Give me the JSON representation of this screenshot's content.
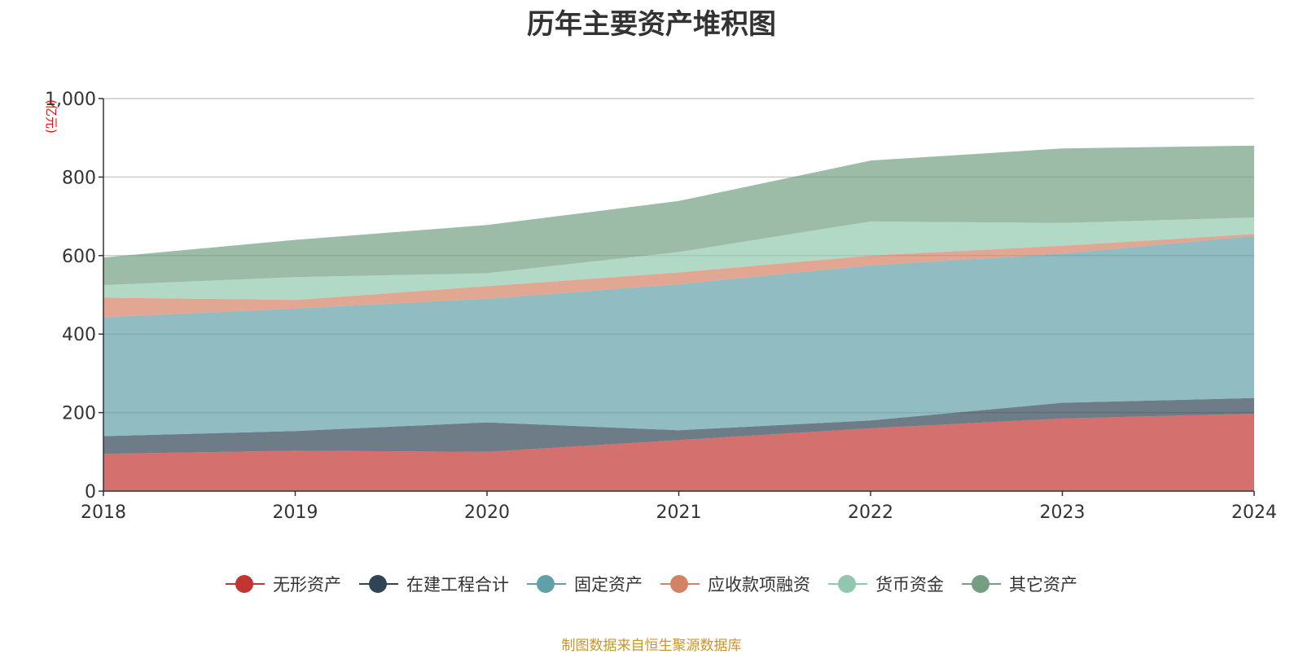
{
  "chart_data": {
    "type": "area",
    "stacked": true,
    "title": "历年主要资产堆积图",
    "ylabel": "(亿元)",
    "xlabel": "",
    "x": [
      "2018",
      "2019",
      "2020",
      "2021",
      "2022",
      "2023",
      "2024"
    ],
    "ylim": [
      0,
      1000
    ],
    "yticks": [
      0,
      200,
      400,
      600,
      800,
      1000
    ],
    "ytick_labels": [
      "0",
      "200",
      "400",
      "600",
      "800",
      "1,000"
    ],
    "grid": true,
    "legend_position": "bottom",
    "series": [
      {
        "name": "无形资产",
        "color": "#c23531",
        "values": [
          95,
          103,
          100,
          130,
          160,
          185,
          197
        ]
      },
      {
        "name": "在建工程合计",
        "color": "#2f4554",
        "values": [
          45,
          50,
          75,
          25,
          20,
          40,
          40
        ]
      },
      {
        "name": "固定资产",
        "color": "#61a0a8",
        "values": [
          303,
          312,
          315,
          372,
          395,
          380,
          413
        ]
      },
      {
        "name": "应收款项融资",
        "color": "#d48265",
        "values": [
          50,
          22,
          32,
          30,
          25,
          20,
          5
        ]
      },
      {
        "name": "货币资金",
        "color": "#91c7ae",
        "values": [
          32,
          58,
          33,
          52,
          87,
          58,
          42
        ]
      },
      {
        "name": "其它资产",
        "color": "#749f83",
        "values": [
          70,
          95,
          123,
          130,
          155,
          190,
          183
        ]
      }
    ],
    "source_note": "制图数据来自恒生聚源数据库"
  }
}
